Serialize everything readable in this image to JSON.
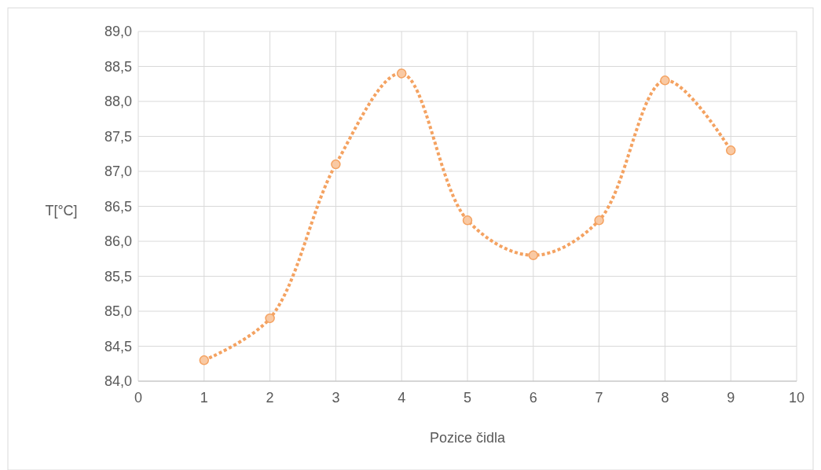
{
  "chart_data": {
    "type": "line",
    "xlabel": "Pozice čidla",
    "ylabel": "T[°C]",
    "x": [
      1,
      2,
      3,
      4,
      5,
      6,
      7,
      8,
      9
    ],
    "series": [
      {
        "color": "#f4a261",
        "values": [
          84.3,
          84.9,
          87.1,
          88.4,
          86.3,
          85.8,
          86.3,
          88.3,
          87.3
        ]
      }
    ],
    "xlim": [
      0,
      10
    ],
    "xticks": [
      0,
      1,
      2,
      3,
      4,
      5,
      6,
      7,
      8,
      9,
      10
    ],
    "ylim": [
      84,
      89
    ],
    "yticks": [
      {
        "value": 84,
        "label": "84,0"
      },
      {
        "value": 84.5,
        "label": "84,5"
      },
      {
        "value": 85,
        "label": "85,0"
      },
      {
        "value": 85.5,
        "label": "85,5"
      },
      {
        "value": 86,
        "label": "86,0"
      },
      {
        "value": 86.5,
        "label": "86,5"
      },
      {
        "value": 87,
        "label": "87,0"
      },
      {
        "value": 87.5,
        "label": "87,5"
      },
      {
        "value": 88,
        "label": "88,0"
      },
      {
        "value": 88.5,
        "label": "88,5"
      },
      {
        "value": 89,
        "label": "89,0"
      }
    ],
    "grid": true,
    "marker": "circle",
    "line_style": "dotted"
  }
}
